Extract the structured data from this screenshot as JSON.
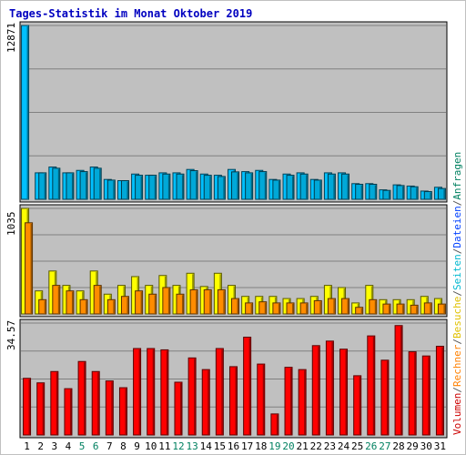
{
  "chart_data": {
    "type": "bar",
    "title": "Tages-Statistik im Monat Oktober 2019",
    "categories": [
      "1",
      "2",
      "3",
      "4",
      "5",
      "6",
      "7",
      "8",
      "9",
      "10",
      "11",
      "12",
      "13",
      "14",
      "15",
      "16",
      "17",
      "18",
      "19",
      "20",
      "21",
      "22",
      "23",
      "24",
      "25",
      "26",
      "27",
      "28",
      "29",
      "30",
      "31"
    ],
    "weekend_categories": [
      "5",
      "6",
      "12",
      "13",
      "19",
      "20",
      "26",
      "27"
    ],
    "panels": [
      {
        "id": "top",
        "max_label": "12871",
        "ylim": [
          0,
          12871
        ],
        "series": [
          {
            "name": "Anfragen",
            "color": "#00c0ff",
            "values": [
              12871,
              1960,
              2390,
              1960,
              2140,
              2390,
              1470,
              1380,
              1870,
              1780,
              1960,
              1960,
              2210,
              1870,
              1780,
              2210,
              2050,
              2140,
              1470,
              1870,
              1960,
              1470,
              1960,
              1960,
              1160,
              1160,
              700,
              1070,
              980,
              610,
              890
            ]
          },
          {
            "name": "Dateien",
            "color": "#00a8d8",
            "values": [
              0,
              1960,
              2300,
              1960,
              2050,
              2300,
              1420,
              1380,
              1780,
              1780,
              1870,
              1870,
              2120,
              1780,
              1690,
              2030,
              1960,
              2050,
              1420,
              1780,
              1870,
              1420,
              1870,
              1870,
              1110,
              1110,
              660,
              1020,
              930,
              570,
              800
            ]
          }
        ]
      },
      {
        "id": "middle",
        "max_label": "1035",
        "ylim": [
          0,
          1035
        ],
        "series": [
          {
            "name": "Seiten",
            "color": "#ffff00",
            "values": [
              1035,
              226,
              421,
              280,
              226,
              421,
              194,
              280,
              366,
              280,
              377,
              280,
              399,
              269,
              399,
              280,
              172,
              172,
              172,
              151,
              151,
              172,
              280,
              259,
              108,
              280,
              140,
              140,
              140,
              172,
              151
            ]
          },
          {
            "name": "Besuche",
            "color": "#ff8c00",
            "values": [
              894,
              140,
              280,
              226,
              140,
              280,
              140,
              172,
              226,
              194,
              259,
              194,
              237,
              237,
              237,
              151,
              108,
              119,
              108,
              108,
              108,
              130,
              151,
              151,
              65,
              140,
              97,
              97,
              86,
              108,
              97
            ]
          }
        ]
      },
      {
        "id": "bottom",
        "max_label": "34.57",
        "ylim": [
          0,
          34.57
        ],
        "series": [
          {
            "name": "Volumen",
            "color": "#ff0000",
            "values": [
              17.5,
              16.1,
              19.6,
              14.3,
              22.7,
              19.6,
              16.7,
              14.6,
              26.7,
              26.7,
              26.3,
              16.3,
              23.8,
              20.2,
              26.7,
              21.1,
              30.2,
              21.9,
              6.5,
              20.9,
              20.2,
              27.6,
              29.0,
              26.5,
              18.3,
              30.6,
              23.1,
              33.8,
              25.7,
              24.4,
              27.4
            ]
          }
        ]
      }
    ],
    "legend_right": [
      {
        "text": "Volumen",
        "color": "#cc0000"
      },
      {
        "text": "/",
        "color": "#555555"
      },
      {
        "text": "Rechner",
        "color": "#ff8000"
      },
      {
        "text": "/",
        "color": "#555555"
      },
      {
        "text": "Besuche",
        "color": "#e0c000"
      },
      {
        "text": "/",
        "color": "#555555"
      },
      {
        "text": "Seiten",
        "color": "#00b8d0"
      },
      {
        "text": "/",
        "color": "#555555"
      },
      {
        "text": "Dateien",
        "color": "#0040ff"
      },
      {
        "text": "/",
        "color": "#555555"
      },
      {
        "text": "Anfragen",
        "color": "#008060"
      }
    ],
    "colors": {
      "background": "#c0c0c0",
      "grid": "#808080",
      "title": "#0000c0",
      "axis_text": "#000000",
      "weekend_label": "#008060"
    }
  }
}
